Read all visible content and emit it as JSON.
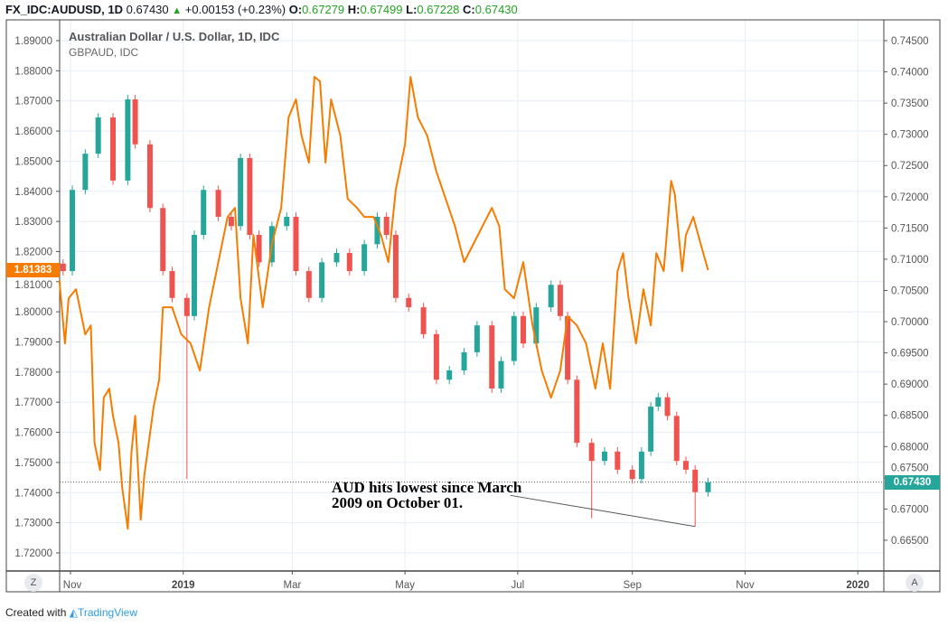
{
  "header": {
    "symbol": "FX_IDC:AUDUSD, 1D",
    "last": "0.67430",
    "change": "+0.00153 (+0.23%)",
    "o_label": "O:",
    "o": "0.67279",
    "h_label": "H:",
    "h": "0.67499",
    "l_label": "L:",
    "l": "0.67228",
    "c_label": "C:",
    "c": "0.67430"
  },
  "legend": {
    "main": "Australian Dollar / U.S. Dollar, 1D, IDC",
    "overlay": "GBPAUD, IDC"
  },
  "badges": {
    "left": "1.81383",
    "right": "0.67430"
  },
  "buttons": {
    "left": "Z",
    "right": "A"
  },
  "annotation": {
    "line1": "AUD hits lowest since March",
    "line2": "2009 on October 01."
  },
  "footer": {
    "created": "Created with",
    "brand": "TradingView"
  },
  "colors": {
    "up": "#26a69a",
    "down": "#ef5350",
    "overlay": "#f57c00",
    "grid": "#e6eef5"
  },
  "chart_data": {
    "type": "candlestick+line",
    "title": "Australian Dollar / U.S. Dollar, 1D, IDC",
    "x_unit": "days since 2018-11-01",
    "x_ticks": [
      {
        "label": "Nov",
        "day": 0
      },
      {
        "label": "2019",
        "day": 61
      },
      {
        "label": "Mar",
        "day": 120
      },
      {
        "label": "May",
        "day": 181
      },
      {
        "label": "Jul",
        "day": 242
      },
      {
        "label": "Sep",
        "day": 304
      },
      {
        "label": "Nov",
        "day": 365
      },
      {
        "label": "2020",
        "day": 426
      }
    ],
    "left_axis": {
      "series": "GBPAUD",
      "ylim": [
        1.72,
        1.89
      ],
      "ticks": [
        "1.89000",
        "1.88000",
        "1.87000",
        "1.86000",
        "1.85000",
        "1.84000",
        "1.83000",
        "1.82000",
        "1.81000",
        "1.80000",
        "1.79000",
        "1.78000",
        "1.77000",
        "1.76000",
        "1.75000",
        "1.74000",
        "1.73000",
        "1.72000"
      ]
    },
    "right_axis": {
      "series": "AUDUSD",
      "ylim": [
        0.665,
        0.745
      ],
      "ticks": [
        "0.74500",
        "0.74000",
        "0.73500",
        "0.73000",
        "0.72500",
        "0.72000",
        "0.71500",
        "0.71000",
        "0.70500",
        "0.70000",
        "0.69500",
        "0.69000",
        "0.68500",
        "0.68000",
        "0.67500",
        "0.67000",
        "0.66500"
      ]
    },
    "audusd_closes": [
      [
        -4,
        0.7081
      ],
      [
        1,
        0.7211
      ],
      [
        8,
        0.7269
      ],
      [
        15,
        0.7327
      ],
      [
        23,
        0.7226
      ],
      [
        31,
        0.7356
      ],
      [
        35,
        0.7284
      ],
      [
        43,
        0.7182
      ],
      [
        50,
        0.7081
      ],
      [
        55,
        0.7038
      ],
      [
        63,
        0.7009
      ],
      [
        67,
        0.7139
      ],
      [
        72,
        0.7211
      ],
      [
        80,
        0.7168
      ],
      [
        87,
        0.7153
      ],
      [
        92,
        0.7262
      ],
      [
        97,
        0.7139
      ],
      [
        102,
        0.7095
      ],
      [
        109,
        0.7153
      ],
      [
        117,
        0.7168
      ],
      [
        122,
        0.7081
      ],
      [
        129,
        0.7038
      ],
      [
        136,
        0.7095
      ],
      [
        144,
        0.711
      ],
      [
        151,
        0.7081
      ],
      [
        159,
        0.7124
      ],
      [
        166,
        0.7168
      ],
      [
        171,
        0.7139
      ],
      [
        176,
        0.7038
      ],
      [
        183,
        0.7023
      ],
      [
        191,
        0.698
      ],
      [
        198,
        0.6907
      ],
      [
        205,
        0.6922
      ],
      [
        213,
        0.6951
      ],
      [
        220,
        0.6994
      ],
      [
        228,
        0.6893
      ],
      [
        233,
        0.6937
      ],
      [
        240,
        0.7009
      ],
      [
        245,
        0.6965
      ],
      [
        252,
        0.7023
      ],
      [
        260,
        0.7059
      ],
      [
        265,
        0.7009
      ],
      [
        269,
        0.6907
      ],
      [
        274,
        0.6806
      ],
      [
        282,
        0.6777
      ],
      [
        289,
        0.6792
      ],
      [
        296,
        0.6763
      ],
      [
        304,
        0.6748
      ],
      [
        309,
        0.6792
      ],
      [
        314,
        0.6864
      ],
      [
        318,
        0.6879
      ],
      [
        323,
        0.6849
      ],
      [
        328,
        0.6777
      ],
      [
        333,
        0.6763
      ],
      [
        338,
        0.6727
      ],
      [
        345,
        0.6743
      ]
    ],
    "audusd_extreme_lows": [
      [
        63,
        0.6748
      ],
      [
        282,
        0.6685
      ],
      [
        338,
        0.6672
      ]
    ],
    "gbpaud_line": [
      [
        -6,
        1.8105
      ],
      [
        -3,
        1.7895
      ],
      [
        -1,
        1.8045
      ],
      [
        3,
        1.8075
      ],
      [
        8,
        1.7925
      ],
      [
        11,
        1.7955
      ],
      [
        13,
        1.7565
      ],
      [
        16,
        1.7475
      ],
      [
        18,
        1.7715
      ],
      [
        21,
        1.7745
      ],
      [
        23,
        1.7655
      ],
      [
        26,
        1.7565
      ],
      [
        28,
        1.7415
      ],
      [
        31,
        1.728
      ],
      [
        33,
        1.7535
      ],
      [
        35,
        1.7655
      ],
      [
        38,
        1.731
      ],
      [
        40,
        1.746
      ],
      [
        45,
        1.7685
      ],
      [
        48,
        1.7775
      ],
      [
        50,
        1.8015
      ],
      [
        55,
        1.8015
      ],
      [
        60,
        1.7925
      ],
      [
        65,
        1.7895
      ],
      [
        70,
        1.7805
      ],
      [
        75,
        1.8015
      ],
      [
        80,
        1.8165
      ],
      [
        85,
        1.8315
      ],
      [
        89,
        1.8345
      ],
      [
        92,
        1.8045
      ],
      [
        96,
        1.7895
      ],
      [
        99,
        1.8255
      ],
      [
        104,
        1.8015
      ],
      [
        109,
        1.8225
      ],
      [
        114,
        1.8345
      ],
      [
        118,
        1.8645
      ],
      [
        122,
        1.8705
      ],
      [
        125,
        1.8585
      ],
      [
        129,
        1.8495
      ],
      [
        132,
        1.878
      ],
      [
        135,
        1.8765
      ],
      [
        138,
        1.8495
      ],
      [
        141,
        1.8705
      ],
      [
        146,
        1.8585
      ],
      [
        150,
        1.8375
      ],
      [
        155,
        1.8345
      ],
      [
        159,
        1.8315
      ],
      [
        164,
        1.8315
      ],
      [
        168,
        1.8255
      ],
      [
        172,
        1.8165
      ],
      [
        176,
        1.8405
      ],
      [
        181,
        1.8555
      ],
      [
        184,
        1.878
      ],
      [
        188,
        1.8645
      ],
      [
        193,
        1.8585
      ],
      [
        198,
        1.8465
      ],
      [
        203,
        1.8375
      ],
      [
        208,
        1.8285
      ],
      [
        213,
        1.8165
      ],
      [
        218,
        1.8225
      ],
      [
        223,
        1.8285
      ],
      [
        228,
        1.8345
      ],
      [
        232,
        1.8285
      ],
      [
        235,
        1.8075
      ],
      [
        240,
        1.8045
      ],
      [
        245,
        1.8165
      ],
      [
        250,
        1.7955
      ],
      [
        255,
        1.7805
      ],
      [
        260,
        1.7715
      ],
      [
        265,
        1.7805
      ],
      [
        269,
        1.7985
      ],
      [
        274,
        1.7955
      ],
      [
        279,
        1.7895
      ],
      [
        284,
        1.7745
      ],
      [
        288,
        1.7895
      ],
      [
        292,
        1.7745
      ],
      [
        296,
        1.8135
      ],
      [
        299,
        1.8195
      ],
      [
        302,
        1.8045
      ],
      [
        306,
        1.7895
      ],
      [
        310,
        1.8075
      ],
      [
        314,
        1.7955
      ],
      [
        317,
        1.8195
      ],
      [
        321,
        1.8135
      ],
      [
        325,
        1.8435
      ],
      [
        327,
        1.839
      ],
      [
        331,
        1.8135
      ],
      [
        333,
        1.8255
      ],
      [
        337,
        1.8315
      ],
      [
        341,
        1.8225
      ],
      [
        345,
        1.81383
      ]
    ],
    "trendline": [
      [
        282,
        0.669
      ],
      [
        338,
        0.6672
      ]
    ],
    "current_price_line": 0.6743
  }
}
